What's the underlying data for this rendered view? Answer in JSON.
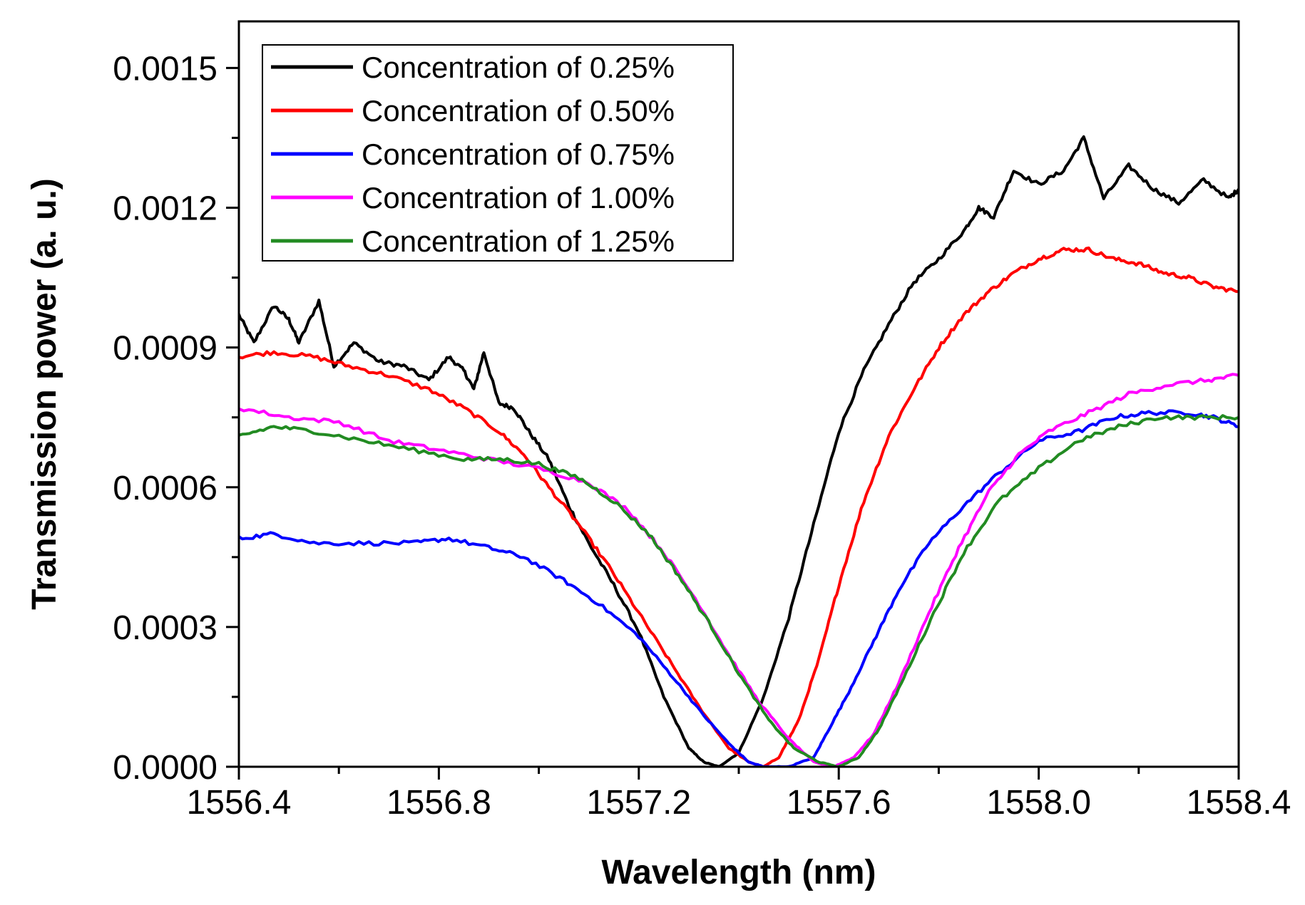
{
  "chart_data": {
    "type": "line",
    "title": "",
    "xlabel": "Wavelength (nm)",
    "ylabel": "Transmission power (a. u.)",
    "xlim": [
      1556.4,
      1558.4
    ],
    "ylim": [
      0,
      0.0016
    ],
    "x_ticks": [
      1556.4,
      1556.8,
      1557.2,
      1557.6,
      1558.0,
      1558.4
    ],
    "x_tick_labels": [
      "1556.4",
      "1556.8",
      "1557.2",
      "1557.6",
      "1558.0",
      "1558.4"
    ],
    "y_ticks": [
      0,
      0.0003,
      0.0006,
      0.0009,
      0.0012,
      0.0015
    ],
    "y_tick_labels": [
      "0.0000",
      "0.0003",
      "0.0006",
      "0.0009",
      "0.0012",
      "0.0015"
    ],
    "legend_position": "top-left",
    "grid": false,
    "series": [
      {
        "name": "Concentration of 0.25%",
        "color": "#000000",
        "x": [
          1556.4,
          1556.43,
          1556.47,
          1556.5,
          1556.52,
          1556.56,
          1556.59,
          1556.63,
          1556.68,
          1556.73,
          1556.78,
          1556.82,
          1556.85,
          1556.87,
          1556.89,
          1556.92,
          1556.95,
          1556.98,
          1557.02,
          1557.06,
          1557.1,
          1557.15,
          1557.2,
          1557.25,
          1557.3,
          1557.33,
          1557.36,
          1557.4,
          1557.45,
          1557.5,
          1557.55,
          1557.6,
          1557.65,
          1557.7,
          1557.75,
          1557.8,
          1557.85,
          1557.88,
          1557.91,
          1557.95,
          1558.0,
          1558.05,
          1558.09,
          1558.13,
          1558.18,
          1558.23,
          1558.28,
          1558.33,
          1558.38,
          1558.4
        ],
        "y": [
          0.00097,
          0.00091,
          0.00099,
          0.00096,
          0.00091,
          0.001,
          0.00086,
          0.00091,
          0.00087,
          0.00086,
          0.00083,
          0.00088,
          0.00085,
          0.00081,
          0.00089,
          0.00078,
          0.00077,
          0.00072,
          0.00066,
          0.00056,
          0.00048,
          0.00039,
          0.00029,
          0.00015,
          4e-05,
          1e-05,
          0.0,
          3e-05,
          0.00015,
          0.00032,
          0.00052,
          0.00072,
          0.00085,
          0.00095,
          0.00104,
          0.00109,
          0.00115,
          0.0012,
          0.00118,
          0.00128,
          0.00125,
          0.00128,
          0.00135,
          0.00122,
          0.00129,
          0.00124,
          0.00121,
          0.00126,
          0.00122,
          0.00124
        ]
      },
      {
        "name": "Concentration of 0.50%",
        "color": "#ff0000",
        "x": [
          1556.4,
          1556.47,
          1556.55,
          1556.62,
          1556.7,
          1556.78,
          1556.85,
          1556.92,
          1556.97,
          1557.02,
          1557.08,
          1557.14,
          1557.2,
          1557.26,
          1557.32,
          1557.38,
          1557.42,
          1557.45,
          1557.48,
          1557.52,
          1557.56,
          1557.6,
          1557.65,
          1557.7,
          1557.75,
          1557.8,
          1557.85,
          1557.9,
          1557.95,
          1558.0,
          1558.05,
          1558.1,
          1558.15,
          1558.2,
          1558.25,
          1558.3,
          1558.35,
          1558.4
        ],
        "y": [
          0.00088,
          0.00089,
          0.00088,
          0.00086,
          0.00084,
          0.00081,
          0.00077,
          0.00072,
          0.00067,
          0.0006,
          0.00052,
          0.00043,
          0.00033,
          0.00023,
          0.00013,
          4e-05,
          1e-05,
          0.0,
          2e-05,
          0.0001,
          0.00023,
          0.00039,
          0.00057,
          0.00071,
          0.00081,
          0.0009,
          0.00097,
          0.00102,
          0.00106,
          0.00109,
          0.00111,
          0.00111,
          0.00109,
          0.00108,
          0.00106,
          0.00105,
          0.00103,
          0.00102
        ]
      },
      {
        "name": "Concentration of 0.75%",
        "color": "#0000ff",
        "x": [
          1556.4,
          1556.47,
          1556.55,
          1556.65,
          1556.75,
          1556.82,
          1556.9,
          1556.97,
          1557.05,
          1557.12,
          1557.2,
          1557.27,
          1557.33,
          1557.38,
          1557.42,
          1557.45,
          1557.5,
          1557.55,
          1557.58,
          1557.62,
          1557.67,
          1557.72,
          1557.78,
          1557.85,
          1557.92,
          1558.0,
          1558.08,
          1558.15,
          1558.22,
          1558.3,
          1558.35,
          1558.4
        ],
        "y": [
          0.00049,
          0.0005,
          0.00048,
          0.00048,
          0.00048,
          0.00049,
          0.00047,
          0.00045,
          0.0004,
          0.00035,
          0.00028,
          0.00019,
          0.00011,
          5e-05,
          1e-05,
          0.0,
          0.0,
          2e-05,
          8e-05,
          0.00016,
          0.00027,
          0.00038,
          0.00048,
          0.00056,
          0.00063,
          0.0007,
          0.00072,
          0.00075,
          0.00076,
          0.00076,
          0.00075,
          0.00073
        ]
      },
      {
        "name": "Concentration of 1.00%",
        "color": "#ff00ff",
        "x": [
          1556.4,
          1556.5,
          1556.6,
          1556.7,
          1556.8,
          1556.9,
          1557.0,
          1557.1,
          1557.18,
          1557.25,
          1557.32,
          1557.38,
          1557.44,
          1557.5,
          1557.55,
          1557.59,
          1557.63,
          1557.67,
          1557.72,
          1557.78,
          1557.84,
          1557.9,
          1557.96,
          1558.02,
          1558.1,
          1558.18,
          1558.26,
          1558.34,
          1558.4
        ],
        "y": [
          0.00077,
          0.00075,
          0.00074,
          0.0007,
          0.00068,
          0.00066,
          0.00064,
          0.00061,
          0.00055,
          0.00046,
          0.00035,
          0.00024,
          0.00014,
          6e-05,
          1e-05,
          0.0,
          2e-05,
          7e-05,
          0.00018,
          0.00033,
          0.00047,
          0.00059,
          0.00067,
          0.00072,
          0.00076,
          0.0008,
          0.00082,
          0.00083,
          0.00084
        ]
      },
      {
        "name": "Concentration of 1.25%",
        "color": "#228b22",
        "x": [
          1556.4,
          1556.47,
          1556.55,
          1556.65,
          1556.75,
          1556.85,
          1556.93,
          1557.0,
          1557.08,
          1557.15,
          1557.22,
          1557.28,
          1557.34,
          1557.4,
          1557.46,
          1557.51,
          1557.56,
          1557.6,
          1557.64,
          1557.68,
          1557.73,
          1557.79,
          1557.85,
          1557.92,
          1558.0,
          1558.08,
          1558.16,
          1558.24,
          1558.32,
          1558.4
        ],
        "y": [
          0.00071,
          0.00073,
          0.00072,
          0.0007,
          0.00068,
          0.00066,
          0.00066,
          0.00065,
          0.00062,
          0.00057,
          0.0005,
          0.00041,
          0.00031,
          0.0002,
          0.0001,
          4e-05,
          1e-05,
          0.0,
          2e-05,
          8e-05,
          0.00019,
          0.00033,
          0.00046,
          0.00057,
          0.00064,
          0.0007,
          0.00073,
          0.00075,
          0.00075,
          0.00075
        ]
      }
    ]
  }
}
